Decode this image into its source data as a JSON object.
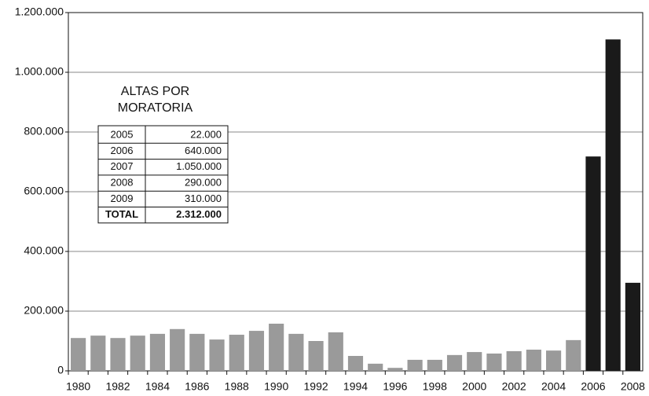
{
  "chart_data": {
    "type": "bar",
    "categories": [
      "1980",
      null,
      "1982",
      null,
      "1984",
      null,
      "1986",
      null,
      "1988",
      null,
      "1990",
      null,
      "1992",
      null,
      "1994",
      null,
      "1996",
      null,
      "1998",
      null,
      "2000",
      null,
      "2002",
      null,
      "2004",
      null,
      "2006",
      null,
      "2008"
    ],
    "values": [
      110000,
      118000,
      110000,
      118000,
      124000,
      140000,
      124000,
      105000,
      121000,
      134000,
      158000,
      124000,
      100000,
      129000,
      50000,
      24000,
      10000,
      37000,
      37000,
      53000,
      63000,
      58000,
      66000,
      71000,
      68000,
      103000,
      718000,
      1110000,
      295000
    ],
    "colors": [
      "#9a9a9a",
      "#9a9a9a",
      "#9a9a9a",
      "#9a9a9a",
      "#9a9a9a",
      "#9a9a9a",
      "#9a9a9a",
      "#9a9a9a",
      "#9a9a9a",
      "#9a9a9a",
      "#9a9a9a",
      "#9a9a9a",
      "#9a9a9a",
      "#9a9a9a",
      "#9a9a9a",
      "#9a9a9a",
      "#9a9a9a",
      "#9a9a9a",
      "#9a9a9a",
      "#9a9a9a",
      "#9a9a9a",
      "#9a9a9a",
      "#9a9a9a",
      "#9a9a9a",
      "#9a9a9a",
      "#9a9a9a",
      "#1a1a1a",
      "#1a1a1a",
      "#1a1a1a"
    ],
    "ylim": [
      0,
      1200000
    ],
    "yticks": [
      0,
      {
        "value": 200000,
        "label": "200.000"
      },
      {
        "value": 400000,
        "label": "400.000"
      },
      {
        "value": 600000,
        "label": "600.000"
      },
      {
        "value": 800000,
        "label": "800.000"
      },
      {
        "value": 1000000,
        "label": "1.000.000"
      },
      {
        "value": 1200000,
        "label": "1.200.000"
      }
    ],
    "grid": true,
    "table": {
      "title": [
        "ALTAS POR",
        "MORATORIA"
      ],
      "rows": [
        [
          "2005",
          "22.000"
        ],
        [
          "2006",
          "640.000"
        ],
        [
          "2007",
          "1.050.000"
        ],
        [
          "2008",
          "290.000"
        ],
        [
          "2009",
          "310.000"
        ]
      ],
      "total": [
        "TOTAL",
        "2.312.000"
      ]
    }
  }
}
